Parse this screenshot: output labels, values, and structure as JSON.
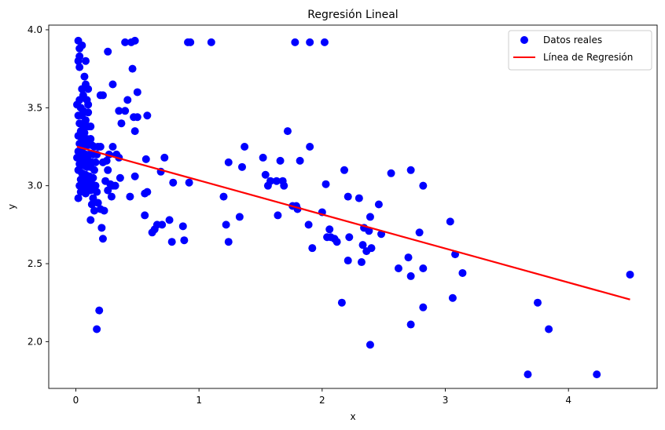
{
  "chart_data": {
    "type": "scatter",
    "title": "Regresión Lineal",
    "xlabel": "x",
    "ylabel": "y",
    "xlim": [
      -0.22,
      4.72
    ],
    "ylim": [
      1.7,
      4.03
    ],
    "xticks": [
      0,
      1,
      2,
      3,
      4
    ],
    "yticks": [
      2.0,
      2.5,
      3.0,
      3.5,
      4.0
    ],
    "xtick_labels": [
      "0",
      "1",
      "2",
      "3",
      "4"
    ],
    "ytick_labels": [
      "2.0",
      "2.5",
      "3.0",
      "3.5",
      "4.0"
    ],
    "grid": false,
    "legend_position": "top-right",
    "series": [
      {
        "name": "Datos reales",
        "kind": "scatter",
        "color": "#0000ff",
        "points": [
          [
            0.02,
            3.93
          ],
          [
            0.03,
            3.88
          ],
          [
            0.05,
            3.9
          ],
          [
            0.03,
            3.83
          ],
          [
            0.02,
            3.8
          ],
          [
            0.08,
            3.8
          ],
          [
            0.03,
            3.76
          ],
          [
            0.07,
            3.7
          ],
          [
            0.08,
            3.65
          ],
          [
            0.05,
            3.62
          ],
          [
            0.1,
            3.62
          ],
          [
            0.06,
            3.58
          ],
          [
            0.03,
            3.55
          ],
          [
            0.09,
            3.55
          ],
          [
            0.1,
            3.52
          ],
          [
            0.01,
            3.52
          ],
          [
            0.04,
            3.5
          ],
          [
            0.06,
            3.48
          ],
          [
            0.1,
            3.47
          ],
          [
            0.02,
            3.45
          ],
          [
            0.05,
            3.45
          ],
          [
            0.08,
            3.42
          ],
          [
            0.03,
            3.4
          ],
          [
            0.06,
            3.38
          ],
          [
            0.1,
            3.38
          ],
          [
            0.12,
            3.38
          ],
          [
            0.04,
            3.35
          ],
          [
            0.07,
            3.34
          ],
          [
            0.02,
            3.32
          ],
          [
            0.05,
            3.3
          ],
          [
            0.09,
            3.3
          ],
          [
            0.12,
            3.3
          ],
          [
            0.03,
            3.27
          ],
          [
            0.06,
            3.26
          ],
          [
            0.1,
            3.26
          ],
          [
            0.13,
            3.26
          ],
          [
            0.15,
            3.25
          ],
          [
            0.18,
            3.25
          ],
          [
            0.2,
            3.25
          ],
          [
            0.02,
            3.22
          ],
          [
            0.05,
            3.22
          ],
          [
            0.08,
            3.2
          ],
          [
            0.11,
            3.2
          ],
          [
            0.14,
            3.2
          ],
          [
            0.17,
            3.2
          ],
          [
            0.01,
            3.18
          ],
          [
            0.04,
            3.18
          ],
          [
            0.07,
            3.17
          ],
          [
            0.1,
            3.16
          ],
          [
            0.13,
            3.15
          ],
          [
            0.16,
            3.15
          ],
          [
            0.03,
            3.14
          ],
          [
            0.06,
            3.13
          ],
          [
            0.09,
            3.12
          ],
          [
            0.12,
            3.12
          ],
          [
            0.15,
            3.1
          ],
          [
            0.02,
            3.1
          ],
          [
            0.05,
            3.08
          ],
          [
            0.08,
            3.07
          ],
          [
            0.11,
            3.06
          ],
          [
            0.14,
            3.05
          ],
          [
            0.04,
            3.04
          ],
          [
            0.07,
            3.03
          ],
          [
            0.1,
            3.02
          ],
          [
            0.13,
            3.01
          ],
          [
            0.16,
            3.0
          ],
          [
            0.03,
            3.0
          ],
          [
            0.06,
            2.99
          ],
          [
            0.09,
            2.98
          ],
          [
            0.12,
            2.97
          ],
          [
            0.17,
            2.96
          ],
          [
            0.04,
            2.96
          ],
          [
            0.08,
            2.95
          ],
          [
            0.02,
            2.92
          ],
          [
            0.14,
            2.92
          ],
          [
            0.18,
            2.89
          ],
          [
            0.13,
            2.88
          ],
          [
            0.15,
            2.84
          ],
          [
            0.2,
            2.85
          ],
          [
            0.23,
            2.84
          ],
          [
            0.12,
            2.78
          ],
          [
            0.21,
            2.73
          ],
          [
            0.22,
            2.66
          ],
          [
            0.19,
            2.2
          ],
          [
            0.17,
            2.08
          ],
          [
            0.26,
            3.86
          ],
          [
            0.3,
            3.65
          ],
          [
            0.4,
            3.92
          ],
          [
            0.45,
            3.92
          ],
          [
            0.48,
            3.93
          ],
          [
            0.46,
            3.75
          ],
          [
            0.5,
            3.6
          ],
          [
            0.2,
            3.58
          ],
          [
            0.22,
            3.58
          ],
          [
            0.42,
            3.55
          ],
          [
            0.35,
            3.48
          ],
          [
            0.4,
            3.48
          ],
          [
            0.47,
            3.44
          ],
          [
            0.5,
            3.44
          ],
          [
            0.58,
            3.45
          ],
          [
            0.37,
            3.4
          ],
          [
            0.48,
            3.35
          ],
          [
            0.27,
            3.2
          ],
          [
            0.3,
            3.25
          ],
          [
            0.33,
            3.2
          ],
          [
            0.35,
            3.18
          ],
          [
            0.25,
            3.16
          ],
          [
            0.22,
            3.15
          ],
          [
            0.57,
            3.17
          ],
          [
            0.72,
            3.18
          ],
          [
            0.26,
            3.1
          ],
          [
            0.48,
            3.06
          ],
          [
            0.36,
            3.05
          ],
          [
            0.24,
            3.03
          ],
          [
            0.28,
            3.01
          ],
          [
            0.3,
            3.0
          ],
          [
            0.32,
            3.0
          ],
          [
            0.26,
            2.97
          ],
          [
            0.56,
            2.95
          ],
          [
            0.58,
            2.96
          ],
          [
            0.29,
            2.93
          ],
          [
            0.44,
            2.93
          ],
          [
            0.69,
            3.09
          ],
          [
            0.79,
            3.02
          ],
          [
            0.92,
            3.02
          ],
          [
            0.56,
            2.81
          ],
          [
            0.66,
            2.75
          ],
          [
            0.62,
            2.7
          ],
          [
            0.64,
            2.72
          ],
          [
            0.7,
            2.75
          ],
          [
            0.76,
            2.78
          ],
          [
            0.87,
            2.74
          ],
          [
            0.78,
            2.64
          ],
          [
            0.88,
            2.65
          ],
          [
            0.91,
            3.92
          ],
          [
            0.93,
            3.92
          ],
          [
            1.1,
            3.92
          ],
          [
            1.78,
            3.92
          ],
          [
            1.9,
            3.92
          ],
          [
            2.02,
            3.92
          ],
          [
            1.2,
            2.93
          ],
          [
            1.22,
            2.75
          ],
          [
            1.24,
            3.15
          ],
          [
            1.33,
            2.8
          ],
          [
            1.35,
            3.12
          ],
          [
            1.37,
            3.25
          ],
          [
            1.24,
            2.64
          ],
          [
            1.52,
            3.18
          ],
          [
            1.54,
            3.07
          ],
          [
            1.56,
            3.0
          ],
          [
            1.58,
            3.03
          ],
          [
            1.63,
            3.03
          ],
          [
            1.66,
            3.16
          ],
          [
            1.68,
            3.03
          ],
          [
            1.69,
            3.0
          ],
          [
            1.64,
            2.81
          ],
          [
            1.72,
            3.35
          ],
          [
            1.76,
            2.87
          ],
          [
            1.79,
            2.87
          ],
          [
            1.8,
            2.85
          ],
          [
            1.82,
            3.16
          ],
          [
            1.9,
            3.25
          ],
          [
            1.92,
            2.6
          ],
          [
            1.89,
            2.75
          ],
          [
            2.0,
            2.83
          ],
          [
            2.03,
            3.01
          ],
          [
            2.06,
            2.72
          ],
          [
            2.04,
            2.67
          ],
          [
            2.07,
            2.67
          ],
          [
            2.1,
            2.66
          ],
          [
            2.12,
            2.64
          ],
          [
            2.16,
            2.25
          ],
          [
            2.18,
            3.1
          ],
          [
            2.21,
            2.93
          ],
          [
            2.22,
            2.67
          ],
          [
            2.21,
            2.52
          ],
          [
            2.3,
            2.92
          ],
          [
            2.32,
            2.51
          ],
          [
            2.33,
            2.62
          ],
          [
            2.34,
            2.73
          ],
          [
            2.36,
            2.58
          ],
          [
            2.38,
            2.71
          ],
          [
            2.39,
            2.8
          ],
          [
            2.4,
            2.6
          ],
          [
            2.39,
            1.98
          ],
          [
            2.46,
            2.88
          ],
          [
            2.48,
            2.69
          ],
          [
            2.56,
            3.08
          ],
          [
            2.62,
            2.47
          ],
          [
            2.7,
            2.54
          ],
          [
            2.72,
            2.42
          ],
          [
            2.72,
            3.1
          ],
          [
            2.72,
            2.11
          ],
          [
            2.79,
            2.7
          ],
          [
            2.82,
            3.0
          ],
          [
            2.82,
            2.47
          ],
          [
            2.82,
            2.22
          ],
          [
            3.04,
            2.77
          ],
          [
            3.06,
            2.28
          ],
          [
            3.08,
            2.56
          ],
          [
            3.14,
            2.44
          ],
          [
            3.67,
            1.79
          ],
          [
            3.75,
            2.25
          ],
          [
            3.84,
            2.08
          ],
          [
            4.23,
            1.79
          ],
          [
            4.5,
            2.43
          ]
        ]
      },
      {
        "name": "Línea de Regresión",
        "kind": "line",
        "color": "#ff0000",
        "x": [
          0.01,
          4.5
        ],
        "values": [
          3.25,
          2.27
        ]
      }
    ]
  }
}
